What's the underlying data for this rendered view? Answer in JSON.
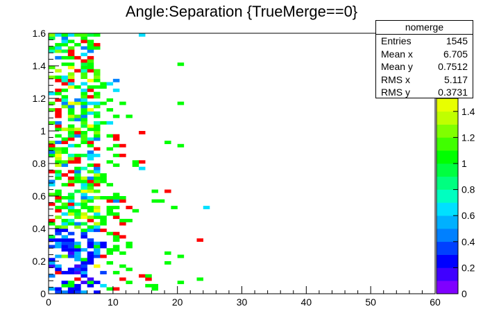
{
  "chart_data": {
    "type": "heatmap",
    "title": "Angle:Separation {TrueMerge==0}",
    "xlabel": "",
    "ylabel": "",
    "xlim": [
      0,
      60
    ],
    "ylim": [
      0,
      1.6
    ],
    "x_ticks": [
      "0",
      "10",
      "20",
      "30",
      "40",
      "50",
      "60"
    ],
    "y_ticks": [
      "0",
      "0.2",
      "0.4",
      "0.6",
      "0.8",
      "1",
      "1.2",
      "1.4",
      "1.6"
    ],
    "palette": {
      "zlim": [
        0,
        1.5
      ],
      "ticks": [
        "0",
        "0.2",
        "0.4",
        "0.6",
        "0.8",
        "1",
        "1.2",
        "1.4"
      ],
      "colors": [
        "#7f00ff",
        "#3f00ff",
        "#0000ff",
        "#0040ff",
        "#0080ff",
        "#00b0ff",
        "#00e0ff",
        "#00ffc0",
        "#00ff80",
        "#00ff40",
        "#00ff00",
        "#40ff00",
        "#80ff00",
        "#c0ff00",
        "#e8ff00"
      ]
    },
    "cell_size": {
      "x": 1,
      "y": 0.02
    },
    "legend": "top-right",
    "grid": false
  },
  "stats_box": {
    "name": "nomerge",
    "rows": [
      {
        "label": "Entries",
        "value": "1545"
      },
      {
        "label": "Mean x",
        "value": "6.705"
      },
      {
        "label": "Mean y",
        "value": "0.7512"
      },
      {
        "label": "RMS x",
        "value": "5.117"
      },
      {
        "label": "RMS y",
        "value": "0.3731"
      }
    ]
  },
  "colors": {
    "red": "#ff0000",
    "yellow": "#ffff00",
    "green": "#00ff00",
    "blue": "#0000ff"
  }
}
